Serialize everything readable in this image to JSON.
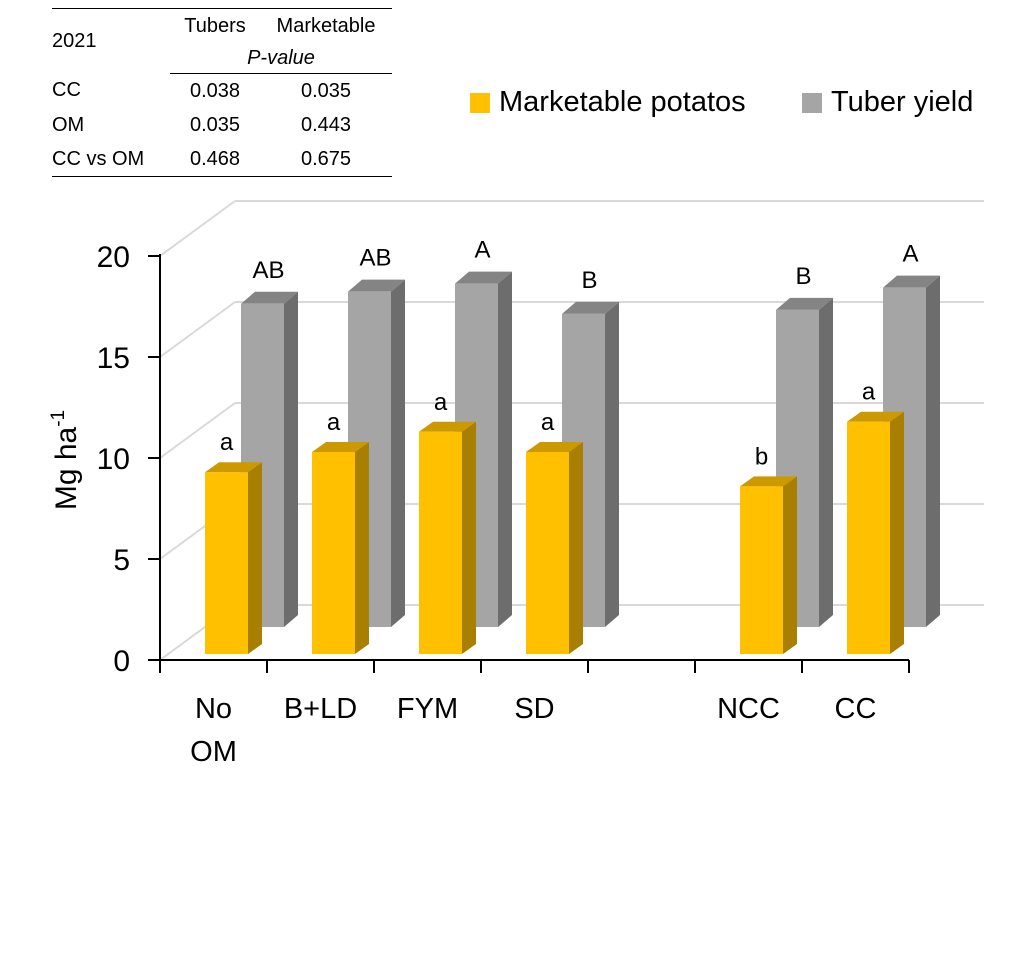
{
  "stats_table": {
    "year": "2021",
    "col_tubers": "Tubers",
    "col_marketable": "Marketable",
    "subheader": "P-value",
    "rows": [
      {
        "label": "CC",
        "tubers": "0.038",
        "marketable": "0.035"
      },
      {
        "label": "OM",
        "tubers": "0.035",
        "marketable": "0.443"
      },
      {
        "label": "CC vs OM",
        "tubers": "0.468",
        "marketable": "0.675"
      }
    ]
  },
  "chart_data": {
    "type": "bar",
    "style": "3d-clustered",
    "ylabel": "Mg ha",
    "ylabel_superscript": "-1",
    "ylim": [
      0,
      20
    ],
    "yticks": [
      0,
      5,
      10,
      15,
      20
    ],
    "grid": true,
    "legend_position": "top-right",
    "categories": [
      "No OM",
      "B+LD",
      "FYM",
      "SD",
      "",
      "NCC",
      "CC"
    ],
    "category_lines": [
      [
        "No",
        "OM"
      ],
      [
        "B+LD"
      ],
      [
        "FYM"
      ],
      [
        "SD"
      ],
      [],
      [
        "NCC"
      ],
      [
        "CC"
      ]
    ],
    "series": [
      {
        "name": "Marketable potatos",
        "color": "#ffc000",
        "values": [
          9.0,
          10.0,
          11.0,
          10.0,
          null,
          8.3,
          11.5
        ],
        "labels": [
          "a",
          "a",
          "a",
          "a",
          "",
          "b",
          "a"
        ]
      },
      {
        "name": "Tuber yield",
        "color": "#a5a5a5",
        "values": [
          16.0,
          16.6,
          17.0,
          15.5,
          null,
          15.7,
          16.8
        ],
        "labels": [
          "AB",
          "AB",
          "A",
          "B",
          "",
          "B",
          "A"
        ]
      }
    ]
  }
}
